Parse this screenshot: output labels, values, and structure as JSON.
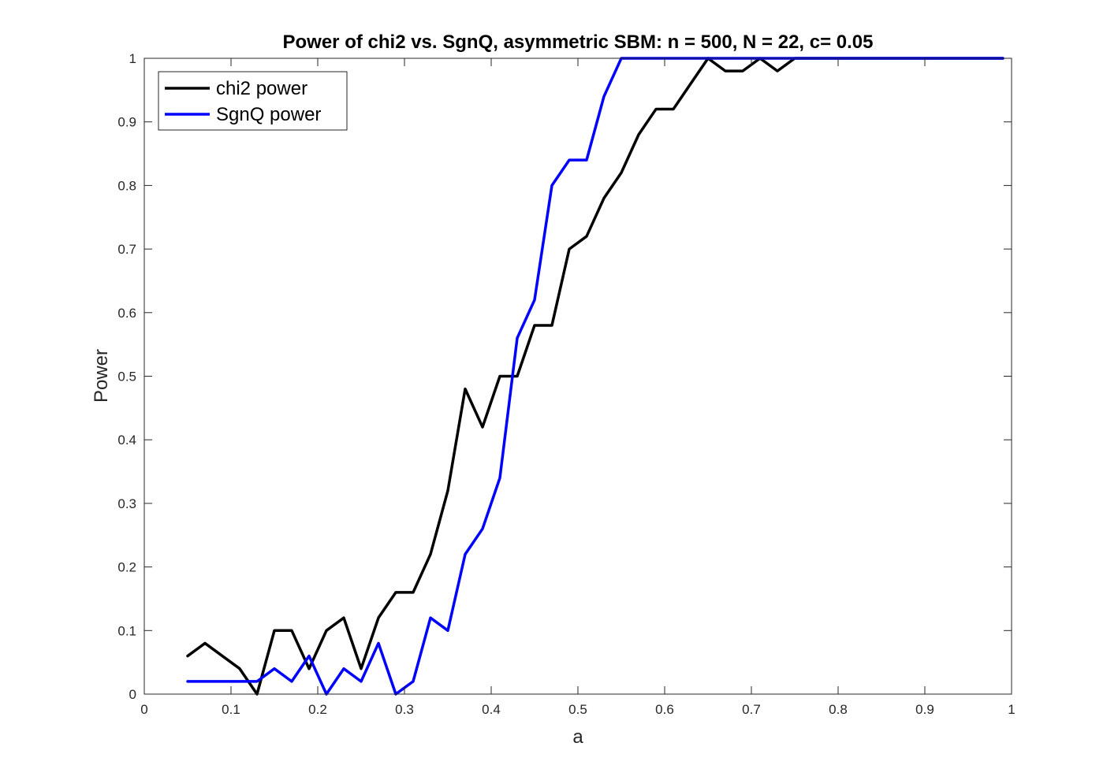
{
  "chart_data": {
    "type": "line",
    "title": "Power of chi2 vs. SgnQ, asymmetric SBM: n = 500, N = 22, c= 0.05",
    "xlabel": "a",
    "ylabel": "Power",
    "xlim": [
      0,
      1
    ],
    "ylim": [
      0,
      1
    ],
    "xticks": [
      0,
      0.1,
      0.2,
      0.3,
      0.4,
      0.5,
      0.6,
      0.7,
      0.8,
      0.9,
      1
    ],
    "xtick_labels": [
      "0",
      "0.1",
      "0.2",
      "0.3",
      "0.4",
      "0.5",
      "0.6",
      "0.7",
      "0.8",
      "0.9",
      "1"
    ],
    "yticks": [
      0,
      0.1,
      0.2,
      0.3,
      0.4,
      0.5,
      0.6,
      0.7,
      0.8,
      0.9,
      1
    ],
    "ytick_labels": [
      "0",
      "0.1",
      "0.2",
      "0.3",
      "0.4",
      "0.5",
      "0.6",
      "0.7",
      "0.8",
      "0.9",
      "1"
    ],
    "grid": false,
    "legend": "top-left",
    "x": [
      0.05,
      0.07,
      0.09,
      0.11,
      0.13,
      0.15,
      0.17,
      0.19,
      0.21,
      0.23,
      0.25,
      0.27,
      0.29,
      0.31,
      0.33,
      0.35,
      0.37,
      0.39,
      0.41,
      0.43,
      0.45,
      0.47,
      0.49,
      0.51,
      0.53,
      0.55,
      0.57,
      0.59,
      0.61,
      0.63,
      0.65,
      0.67,
      0.69,
      0.71,
      0.73,
      0.75,
      0.77,
      0.79,
      0.81,
      0.83,
      0.85,
      0.87,
      0.89,
      0.91,
      0.93,
      0.95,
      0.97,
      0.99
    ],
    "series": [
      {
        "name": "chi2 power",
        "color": "#000000",
        "values": [
          0.06,
          0.08,
          0.06,
          0.04,
          0.0,
          0.1,
          0.1,
          0.04,
          0.1,
          0.12,
          0.04,
          0.12,
          0.16,
          0.16,
          0.22,
          0.32,
          0.48,
          0.42,
          0.5,
          0.5,
          0.58,
          0.58,
          0.7,
          0.72,
          0.78,
          0.82,
          0.88,
          0.92,
          0.92,
          0.96,
          1.0,
          0.98,
          0.98,
          1.0,
          0.98,
          1.0,
          1.0,
          1.0,
          1.0,
          1.0,
          1.0,
          1.0,
          1.0,
          1.0,
          1.0,
          1.0,
          1.0,
          1.0
        ]
      },
      {
        "name": "SgnQ power",
        "color": "#0000ff",
        "values": [
          0.02,
          0.02,
          0.02,
          0.02,
          0.02,
          0.04,
          0.02,
          0.06,
          0.0,
          0.04,
          0.02,
          0.08,
          0.0,
          0.02,
          0.12,
          0.1,
          0.22,
          0.26,
          0.34,
          0.56,
          0.62,
          0.8,
          0.84,
          0.84,
          0.94,
          1.0,
          1.0,
          1.0,
          1.0,
          1.0,
          1.0,
          1.0,
          1.0,
          1.0,
          1.0,
          1.0,
          1.0,
          1.0,
          1.0,
          1.0,
          1.0,
          1.0,
          1.0,
          1.0,
          1.0,
          1.0,
          1.0,
          1.0
        ]
      }
    ]
  }
}
